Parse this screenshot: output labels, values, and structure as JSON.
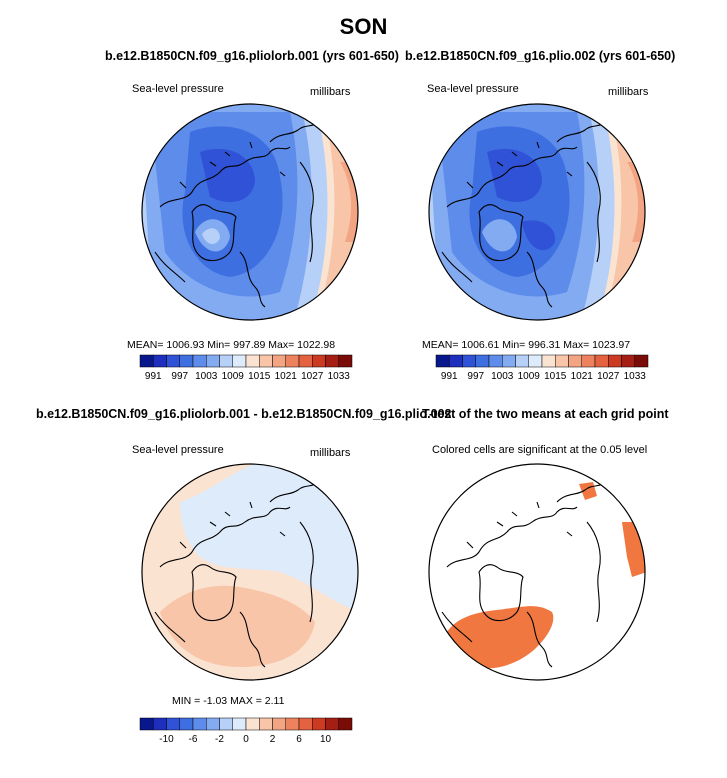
{
  "title": "SON",
  "panels": [
    {
      "title": "b.e12.B1850CN.f09_g16.pliolorb.001 (yrs 601-650)",
      "left_label": "Sea-level pressure",
      "right_label": "millibars",
      "stats": "MEAN= 1006.93   Min= 997.89   Max= 1022.98",
      "colorbar": {
        "ticks": [
          "991",
          "997",
          "1003",
          "1009",
          "1015",
          "1021",
          "1027",
          "1033"
        ]
      }
    },
    {
      "title": "b.e12.B1850CN.f09_g16.plio.002 (yrs 601-650)",
      "left_label": "Sea-level pressure",
      "right_label": "millibars",
      "stats": "MEAN= 1006.61   Min= 996.31   Max= 1023.97",
      "colorbar": {
        "ticks": [
          "991",
          "997",
          "1003",
          "1009",
          "1015",
          "1021",
          "1027",
          "1033"
        ]
      }
    },
    {
      "title": "b.e12.B1850CN.f09_g16.pliolorb.001 - b.e12.B1850CN.f09_g16.plio.002",
      "left_label": "Sea-level pressure",
      "right_label": "millibars",
      "stats": "MIN =  -1.03  MAX =   2.11",
      "colorbar": {
        "ticks": [
          "-10",
          "-6",
          "-2",
          "0",
          "2",
          "6",
          "10"
        ]
      }
    },
    {
      "title": "T-test of the two means at each grid point",
      "left_label": "Colored cells are significant at the 0.05 level"
    }
  ],
  "colors": {
    "scale_abs": [
      "#08178c",
      "#1e2fbd",
      "#2f52d6",
      "#3e6fe0",
      "#5e8cea",
      "#83abf2",
      "#b6d0f8",
      "#deebfb",
      "#fbe3d2",
      "#f8c5a8",
      "#f3a482",
      "#ec825e",
      "#e4623f",
      "#cc3a22",
      "#a51e13",
      "#7a0c08"
    ],
    "scale_diff": [
      "#08178c",
      "#1e2fbd",
      "#2f52d6",
      "#3e6fe0",
      "#5e8cea",
      "#83abf2",
      "#b6d0f8",
      "#deebfb",
      "#fbe3d2",
      "#f8c5a8",
      "#f3a482",
      "#ec825e",
      "#e4623f",
      "#cc3a22",
      "#a51e13",
      "#7a0c08"
    ],
    "significant": "#f07840"
  }
}
